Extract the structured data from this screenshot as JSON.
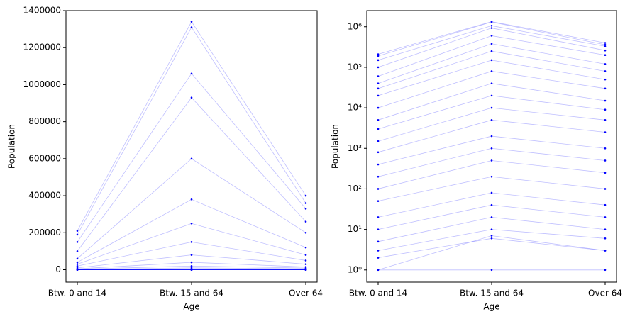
{
  "chart_data": [
    {
      "type": "line",
      "xlabel": "Age",
      "ylabel": "Population",
      "yscale": "linear",
      "color": "#0000ff",
      "categories": [
        "Btw. 0 and 14",
        "Btw. 15 and 64",
        "Over 64"
      ],
      "ylim": [
        -67000,
        1400000
      ],
      "yticks": [
        0,
        200000,
        400000,
        600000,
        800000,
        1000000,
        1200000,
        1400000
      ],
      "series": [
        {
          "values": [
            210000,
            1340000,
            400000
          ]
        },
        {
          "values": [
            190000,
            1310000,
            360000
          ]
        },
        {
          "values": [
            150000,
            1060000,
            330000
          ]
        },
        {
          "values": [
            100000,
            930000,
            260000
          ]
        },
        {
          "values": [
            60000,
            600000,
            200000
          ]
        },
        {
          "values": [
            40000,
            380000,
            120000
          ]
        },
        {
          "values": [
            30000,
            250000,
            80000
          ]
        },
        {
          "values": [
            20000,
            150000,
            50000
          ]
        },
        {
          "values": [
            10000,
            80000,
            30000
          ]
        },
        {
          "values": [
            5000,
            40000,
            15000
          ]
        },
        {
          "values": [
            3000,
            20000,
            9000
          ]
        },
        {
          "values": [
            1500,
            10000,
            5000
          ]
        },
        {
          "values": [
            800,
            5000,
            2500
          ]
        },
        {
          "values": [
            400,
            2000,
            1000
          ]
        },
        {
          "values": [
            200,
            1000,
            500
          ]
        },
        {
          "values": [
            100,
            500,
            250
          ]
        },
        {
          "values": [
            50,
            200,
            100
          ]
        },
        {
          "values": [
            20,
            80,
            40
          ]
        },
        {
          "values": [
            10,
            40,
            20
          ]
        },
        {
          "values": [
            5,
            20,
            10
          ]
        },
        {
          "values": [
            3,
            10,
            6
          ]
        },
        {
          "values": [
            2,
            6,
            3
          ]
        },
        {
          "values": [
            1,
            7,
            3
          ]
        },
        {
          "values": [
            1,
            1,
            1
          ]
        }
      ]
    },
    {
      "type": "line",
      "xlabel": "Age",
      "ylabel": "Population",
      "yscale": "log",
      "color": "#0000ff",
      "categories": [
        "Btw. 0 and 14",
        "Btw. 15 and 64",
        "Over 64"
      ],
      "ylim": [
        0.5,
        2500000
      ],
      "yticks": [
        {
          "value": 1,
          "label": "10⁰"
        },
        {
          "value": 10,
          "label": "10¹"
        },
        {
          "value": 100,
          "label": "10²"
        },
        {
          "value": 1000,
          "label": "10³"
        },
        {
          "value": 10000,
          "label": "10⁴"
        },
        {
          "value": 100000,
          "label": "10⁵"
        },
        {
          "value": 1000000,
          "label": "10⁶"
        }
      ],
      "series": [
        {
          "values": [
            210000,
            1340000,
            400000
          ]
        },
        {
          "values": [
            190000,
            1310000,
            360000
          ]
        },
        {
          "values": [
            150000,
            1060000,
            330000
          ]
        },
        {
          "values": [
            100000,
            930000,
            260000
          ]
        },
        {
          "values": [
            60000,
            600000,
            200000
          ]
        },
        {
          "values": [
            40000,
            380000,
            120000
          ]
        },
        {
          "values": [
            30000,
            250000,
            80000
          ]
        },
        {
          "values": [
            20000,
            150000,
            50000
          ]
        },
        {
          "values": [
            10000,
            80000,
            30000
          ]
        },
        {
          "values": [
            5000,
            40000,
            15000
          ]
        },
        {
          "values": [
            3000,
            20000,
            9000
          ]
        },
        {
          "values": [
            1500,
            10000,
            5000
          ]
        },
        {
          "values": [
            800,
            5000,
            2500
          ]
        },
        {
          "values": [
            400,
            2000,
            1000
          ]
        },
        {
          "values": [
            200,
            1000,
            500
          ]
        },
        {
          "values": [
            100,
            500,
            250
          ]
        },
        {
          "values": [
            50,
            200,
            100
          ]
        },
        {
          "values": [
            20,
            80,
            40
          ]
        },
        {
          "values": [
            10,
            40,
            20
          ]
        },
        {
          "values": [
            5,
            20,
            10
          ]
        },
        {
          "values": [
            3,
            10,
            6
          ]
        },
        {
          "values": [
            2,
            6,
            3
          ]
        },
        {
          "values": [
            1,
            7,
            3
          ]
        },
        {
          "values": [
            1,
            1,
            1
          ]
        }
      ]
    }
  ]
}
